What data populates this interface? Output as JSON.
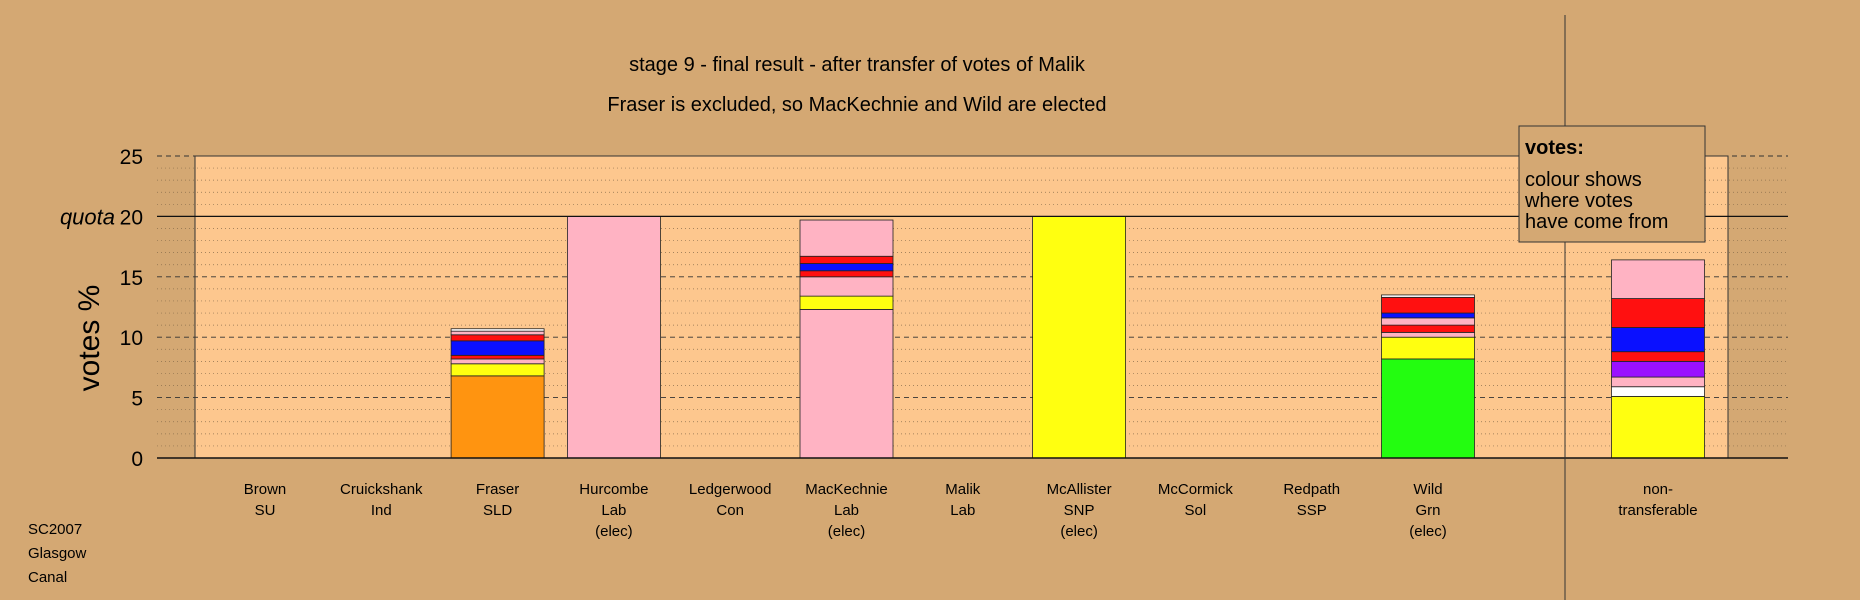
{
  "chart_data": {
    "type": "bar",
    "title": "stage 9 - final result - after transfer of votes of Malik",
    "subtitle": "Fraser is excluded, so MacKechnie and Wild are elected",
    "ylabel": "votes %",
    "quota_label": "quota",
    "quota": 20,
    "ylim": [
      0,
      25
    ],
    "yticks": [
      0,
      5,
      10,
      15,
      20,
      25
    ],
    "grid": true,
    "legend": {
      "position": "top-right",
      "title": "votes:",
      "lines": [
        "colour shows",
        "where votes",
        "have come from"
      ]
    },
    "colors": {
      "background": "#d4a873",
      "plot_area": "#fdc78e",
      "orange": "#ff9410",
      "pink": "#ffb3c3",
      "yellow": "#ffff10",
      "green": "#23fd10",
      "red": "#ff1010",
      "blue": "#0a10ff",
      "purple": "#9a10ff",
      "white": "#ffffff"
    },
    "categories": [
      {
        "name": "Brown",
        "party": "SU",
        "note": "",
        "segments": []
      },
      {
        "name": "Cruickshank",
        "party": "Ind",
        "note": "",
        "segments": []
      },
      {
        "name": "Fraser",
        "party": "SLD",
        "note": "",
        "segments": [
          {
            "value": 6.8,
            "color": "#ff9410"
          },
          {
            "value": 1.0,
            "color": "#ffff10"
          },
          {
            "value": 0.4,
            "color": "#ffb3c3"
          },
          {
            "value": 0.3,
            "color": "#ff1010"
          },
          {
            "value": 1.2,
            "color": "#0a10ff"
          },
          {
            "value": 0.5,
            "color": "#ff1010"
          },
          {
            "value": 0.3,
            "color": "#ffb3c3"
          },
          {
            "value": 0.2,
            "color": "#ffffff"
          }
        ]
      },
      {
        "name": "Hurcombe",
        "party": "Lab",
        "note": "(elec)",
        "segments": [
          {
            "value": 20.0,
            "color": "#ffb3c3"
          }
        ]
      },
      {
        "name": "Ledgerwood",
        "party": "Con",
        "note": "",
        "segments": []
      },
      {
        "name": "MacKechnie",
        "party": "Lab",
        "note": "(elec)",
        "segments": [
          {
            "value": 12.3,
            "color": "#ffb3c3"
          },
          {
            "value": 1.1,
            "color": "#ffff10"
          },
          {
            "value": 1.6,
            "color": "#ffb3c3"
          },
          {
            "value": 0.5,
            "color": "#ff1010"
          },
          {
            "value": 0.6,
            "color": "#0a10ff"
          },
          {
            "value": 0.6,
            "color": "#ff1010"
          },
          {
            "value": 3.0,
            "color": "#ffb3c3"
          }
        ]
      },
      {
        "name": "Malik",
        "party": "Lab",
        "note": "",
        "segments": []
      },
      {
        "name": "McAllister",
        "party": "SNP",
        "note": "(elec)",
        "segments": [
          {
            "value": 20.0,
            "color": "#ffff10"
          }
        ]
      },
      {
        "name": "McCormick",
        "party": "Sol",
        "note": "",
        "segments": []
      },
      {
        "name": "Redpath",
        "party": "SSP",
        "note": "",
        "segments": []
      },
      {
        "name": "Wild",
        "party": "Grn",
        "note": "(elec)",
        "segments": [
          {
            "value": 8.2,
            "color": "#23fd10"
          },
          {
            "value": 1.8,
            "color": "#ffff10"
          },
          {
            "value": 0.4,
            "color": "#ffb3c3"
          },
          {
            "value": 0.6,
            "color": "#ff1010"
          },
          {
            "value": 0.6,
            "color": "#ffb3c3"
          },
          {
            "value": 0.4,
            "color": "#0a10ff"
          },
          {
            "value": 1.3,
            "color": "#ff1010"
          },
          {
            "value": 0.2,
            "color": "#ffffff"
          }
        ]
      }
    ],
    "nontransferable": {
      "label1": "non-",
      "label2": "transferable",
      "segments": [
        {
          "value": 5.1,
          "color": "#ffff10"
        },
        {
          "value": 0.8,
          "color": "#ffffff"
        },
        {
          "value": 0.8,
          "color": "#ffb3c3"
        },
        {
          "value": 1.3,
          "color": "#9a10ff"
        },
        {
          "value": 0.8,
          "color": "#ff1010"
        },
        {
          "value": 2.0,
          "color": "#0a10ff"
        },
        {
          "value": 2.4,
          "color": "#ff1010"
        },
        {
          "value": 3.2,
          "color": "#ffb3c3"
        }
      ]
    }
  },
  "footer": {
    "line1": "SC2007",
    "line2": "Glasgow",
    "line3": "Canal"
  }
}
